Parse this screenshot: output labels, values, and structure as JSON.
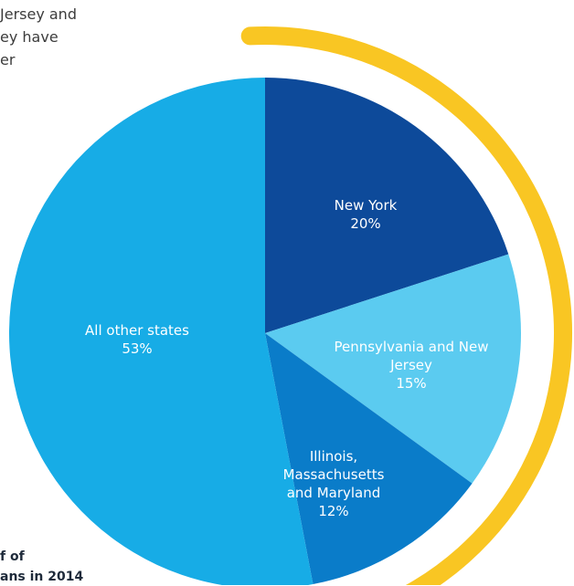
{
  "chart_data": {
    "type": "pie",
    "notes": [
      "Jersey and",
      "ey have",
      "er"
    ],
    "caption": [
      "f of",
      "ans in 2014"
    ],
    "categories": [
      "New York",
      "Pennsylvania and New Jersey",
      "Illinois, Massachusetts and Maryland",
      "All other states"
    ],
    "values": [
      20,
      15,
      12,
      53
    ],
    "value_labels": [
      "20%",
      "15%",
      "12%",
      "53%"
    ],
    "colors": [
      "#0d4a9a",
      "#5bcbf0",
      "#0a7cc9",
      "#17ace6"
    ],
    "ring_color": "#f9c623"
  }
}
